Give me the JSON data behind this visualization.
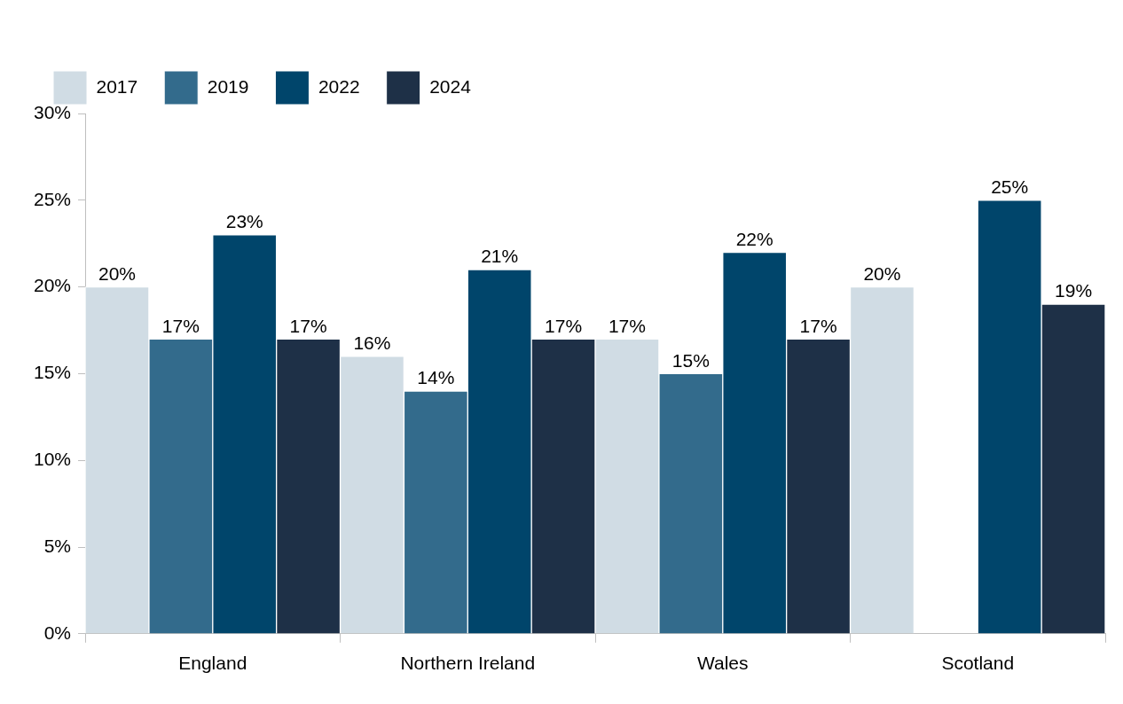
{
  "chart_data": {
    "type": "bar",
    "categories": [
      "England",
      "Northern Ireland",
      "Wales",
      "Scotland"
    ],
    "series": [
      {
        "name": "2017",
        "color": "#d0dce4",
        "values": [
          20,
          16,
          17,
          20
        ],
        "value_labels": [
          "20%",
          "16%",
          "17%",
          "20%"
        ]
      },
      {
        "name": "2019",
        "color": "#336b8c",
        "values": [
          17,
          14,
          15,
          null
        ],
        "value_labels": [
          "17%",
          "14%",
          "15%",
          null
        ]
      },
      {
        "name": "2022",
        "color": "#00456b",
        "values": [
          23,
          21,
          22,
          25
        ],
        "value_labels": [
          "23%",
          "21%",
          "22%",
          "25%"
        ]
      },
      {
        "name": "2024",
        "color": "#1e3047",
        "values": [
          17,
          17,
          17,
          19
        ],
        "value_labels": [
          "17%",
          "17%",
          "17%",
          "19%"
        ]
      }
    ],
    "ylim": [
      0,
      30
    ],
    "yticks": [
      {
        "value": 0,
        "label": "0%"
      },
      {
        "value": 5,
        "label": "5%"
      },
      {
        "value": 10,
        "label": "10%"
      },
      {
        "value": 15,
        "label": "15%"
      },
      {
        "value": 20,
        "label": "20%"
      },
      {
        "value": 25,
        "label": "25%"
      },
      {
        "value": 30,
        "label": "30%"
      }
    ],
    "grid": false,
    "legend": "top"
  }
}
